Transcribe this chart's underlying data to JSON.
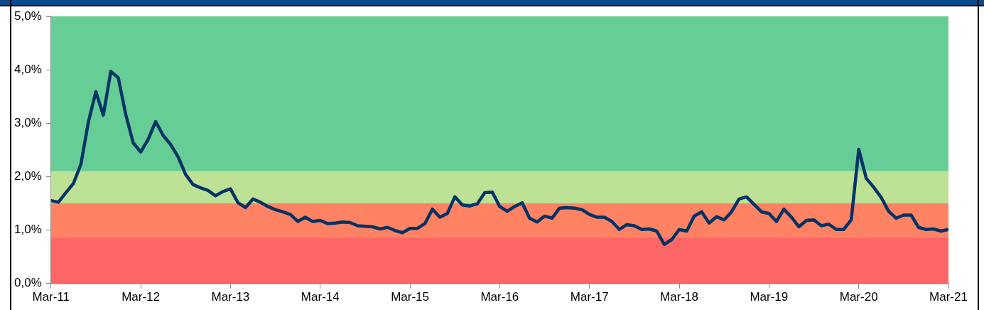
{
  "chart_data": {
    "type": "line",
    "legend": false,
    "grid": false,
    "marker": "none",
    "line_style": "solid",
    "x": [
      "2011-03",
      "2011-04",
      "2011-05",
      "2011-06",
      "2011-07",
      "2011-08",
      "2011-09",
      "2011-10",
      "2011-11",
      "2011-12",
      "2012-01",
      "2012-02",
      "2012-03",
      "2012-04",
      "2012-05",
      "2012-06",
      "2012-07",
      "2012-08",
      "2012-09",
      "2012-10",
      "2012-11",
      "2012-12",
      "2013-01",
      "2013-02",
      "2013-03",
      "2013-04",
      "2013-05",
      "2013-06",
      "2013-07",
      "2013-08",
      "2013-09",
      "2013-10",
      "2013-11",
      "2013-12",
      "2014-01",
      "2014-02",
      "2014-03",
      "2014-04",
      "2014-05",
      "2014-06",
      "2014-07",
      "2014-08",
      "2014-09",
      "2014-10",
      "2014-11",
      "2014-12",
      "2015-01",
      "2015-02",
      "2015-03",
      "2015-04",
      "2015-05",
      "2015-06",
      "2015-07",
      "2015-08",
      "2015-09",
      "2015-10",
      "2015-11",
      "2015-12",
      "2016-01",
      "2016-02",
      "2016-03",
      "2016-04",
      "2016-05",
      "2016-06",
      "2016-07",
      "2016-08",
      "2016-09",
      "2016-10",
      "2016-11",
      "2016-12",
      "2017-01",
      "2017-02",
      "2017-03",
      "2017-04",
      "2017-05",
      "2017-06",
      "2017-07",
      "2017-08",
      "2017-09",
      "2017-10",
      "2017-11",
      "2017-12",
      "2018-01",
      "2018-02",
      "2018-03",
      "2018-04",
      "2018-05",
      "2018-06",
      "2018-07",
      "2018-08",
      "2018-09",
      "2018-10",
      "2018-11",
      "2018-12",
      "2019-01",
      "2019-02",
      "2019-03",
      "2019-04",
      "2019-05",
      "2019-06",
      "2019-07",
      "2019-08",
      "2019-09",
      "2019-10",
      "2019-11",
      "2019-12",
      "2020-01",
      "2020-02",
      "2020-03",
      "2020-04",
      "2020-05",
      "2020-06",
      "2020-07",
      "2020-08",
      "2020-09",
      "2020-10",
      "2020-11",
      "2020-12",
      "2021-01",
      "2021-02",
      "2021-03"
    ],
    "series": [
      {
        "color": "#003366",
        "values": [
          1.55,
          1.52,
          1.7,
          1.87,
          2.23,
          3.02,
          3.59,
          3.15,
          3.97,
          3.85,
          3.16,
          2.63,
          2.46,
          2.7,
          3.03,
          2.77,
          2.6,
          2.37,
          2.04,
          1.85,
          1.79,
          1.74,
          1.64,
          1.72,
          1.77,
          1.51,
          1.42,
          1.58,
          1.52,
          1.44,
          1.38,
          1.34,
          1.29,
          1.16,
          1.24,
          1.16,
          1.18,
          1.12,
          1.13,
          1.15,
          1.14,
          1.08,
          1.07,
          1.06,
          1.02,
          1.05,
          0.99,
          0.95,
          1.03,
          1.03,
          1.12,
          1.39,
          1.24,
          1.31,
          1.62,
          1.47,
          1.45,
          1.49,
          1.7,
          1.71,
          1.44,
          1.35,
          1.44,
          1.51,
          1.22,
          1.15,
          1.26,
          1.22,
          1.41,
          1.42,
          1.41,
          1.38,
          1.29,
          1.24,
          1.24,
          1.16,
          1.01,
          1.1,
          1.08,
          1.01,
          1.02,
          0.98,
          0.73,
          0.82,
          1.01,
          0.98,
          1.26,
          1.34,
          1.13,
          1.25,
          1.19,
          1.34,
          1.58,
          1.62,
          1.48,
          1.34,
          1.31,
          1.16,
          1.39,
          1.24,
          1.06,
          1.18,
          1.19,
          1.08,
          1.11,
          1.01,
          1.01,
          1.19,
          2.51,
          1.97,
          1.8,
          1.61,
          1.35,
          1.22,
          1.28,
          1.28,
          1.05,
          1.01,
          1.02,
          0.98,
          1.01
        ]
      }
    ],
    "xlim": [
      "2011-03",
      "2021-03"
    ],
    "xticks": [
      {
        "value": "2011-03",
        "label": "Mar-11"
      },
      {
        "value": "2012-03",
        "label": "Mar-12"
      },
      {
        "value": "2013-03",
        "label": "Mar-13"
      },
      {
        "value": "2014-03",
        "label": "Mar-14"
      },
      {
        "value": "2015-03",
        "label": "Mar-15"
      },
      {
        "value": "2016-03",
        "label": "Mar-16"
      },
      {
        "value": "2017-03",
        "label": "Mar-17"
      },
      {
        "value": "2018-03",
        "label": "Mar-18"
      },
      {
        "value": "2019-03",
        "label": "Mar-19"
      },
      {
        "value": "2020-03",
        "label": "Mar-20"
      },
      {
        "value": "2021-03",
        "label": "Mar-21"
      }
    ],
    "ylim": [
      0,
      5
    ],
    "yticks": [
      {
        "value": 0,
        "label": "0,0%"
      },
      {
        "value": 1,
        "label": "1,0%"
      },
      {
        "value": 2,
        "label": "2,0%"
      },
      {
        "value": 3,
        "label": "3,0%"
      },
      {
        "value": 4,
        "label": "4,0%"
      },
      {
        "value": 5,
        "label": "5,0%"
      }
    ],
    "bands": [
      {
        "axis": "y",
        "from": 0,
        "to": 0.87,
        "color": "#ff6666"
      },
      {
        "axis": "y",
        "from": 0.87,
        "to": 1.5,
        "color": "#ff8263"
      },
      {
        "axis": "y",
        "from": 1.5,
        "to": 2.1,
        "color": "#bde195"
      },
      {
        "axis": "y",
        "from": 2.1,
        "to": 5,
        "color": "#66cd96"
      }
    ]
  }
}
